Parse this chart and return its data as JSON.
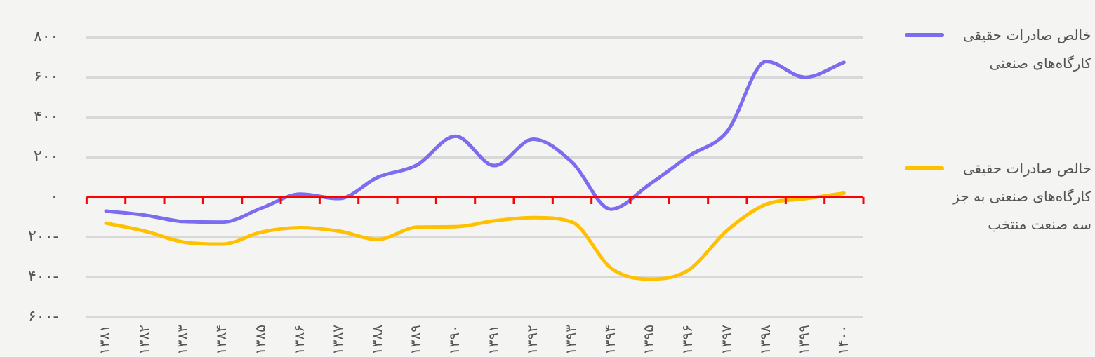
{
  "chart_data": {
    "type": "line",
    "categories": [
      "۱۳۸۱",
      "۱۳۸۲",
      "۱۳۸۳",
      "۱۳۸۴",
      "۱۳۸۵",
      "۱۳۸۶",
      "۱۳۸۷",
      "۱۳۸۸",
      "۱۳۸۹",
      "۱۳۹۰",
      "۱۳۹۱",
      "۱۳۹۲",
      "۱۳۹۳",
      "۱۳۹۴",
      "۱۳۹۵",
      "۱۳۹۶",
      "۱۳۹۷",
      "۱۳۹۸",
      "۱۳۹۹",
      "۱۴۰۰"
    ],
    "series": [
      {
        "name": "خالص صادرات حقیقی کارگاه‌های صنعتی",
        "color": "#7b6cf0",
        "values": [
          -70,
          -90,
          -122,
          -125,
          -55,
          15,
          -7,
          100,
          160,
          305,
          158,
          290,
          175,
          -60,
          65,
          205,
          330,
          680,
          600,
          675
        ]
      },
      {
        "name": "خالص صادرات حقیقی کارگاه‌های صنعتی به جز سه صنعت منتخب",
        "color": "#ffc000",
        "values": [
          -130,
          -170,
          -225,
          -235,
          -175,
          -152,
          -170,
          -212,
          -150,
          -148,
          -118,
          -102,
          -125,
          -355,
          -410,
          -365,
          -165,
          -35,
          -8,
          20
        ]
      }
    ],
    "ylim": [
      -600,
      800
    ],
    "yticks": [
      {
        "value": -600,
        "label": "۶۰۰-"
      },
      {
        "value": -400,
        "label": "۴۰۰-"
      },
      {
        "value": -200,
        "label": "۲۰۰-"
      },
      {
        "value": 0,
        "label": "۰"
      },
      {
        "value": 200,
        "label": "۲۰۰"
      },
      {
        "value": 400,
        "label": "۴۰۰"
      },
      {
        "value": 600,
        "label": "۶۰۰"
      },
      {
        "value": 800,
        "label": "۸۰۰"
      }
    ],
    "ref_lines": [
      {
        "axis": "y",
        "value": 0,
        "color": "#ff0000"
      }
    ],
    "grid": "y",
    "legend": "right",
    "marker": "none",
    "line_style": "solid"
  }
}
